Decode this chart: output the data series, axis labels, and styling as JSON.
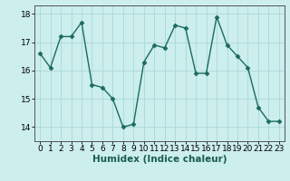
{
  "x": [
    0,
    1,
    2,
    3,
    4,
    5,
    6,
    7,
    8,
    9,
    10,
    11,
    12,
    13,
    14,
    15,
    16,
    17,
    18,
    19,
    20,
    21,
    22,
    23
  ],
  "y": [
    16.6,
    16.1,
    17.2,
    17.2,
    17.7,
    15.5,
    15.4,
    15.0,
    14.0,
    14.1,
    16.3,
    16.9,
    16.8,
    17.6,
    17.5,
    15.9,
    15.9,
    17.9,
    16.9,
    16.5,
    16.1,
    14.7,
    14.2,
    14.2
  ],
  "line_color": "#1a6b5e",
  "marker": "D",
  "marker_size": 2.5,
  "line_width": 1.0,
  "bg_color": "#cceeed",
  "grid_color": "#aad8d6",
  "xlabel": "Humidex (Indice chaleur)",
  "ylim": [
    13.5,
    18.3
  ],
  "xlim": [
    -0.5,
    23.5
  ],
  "yticks": [
    14,
    15,
    16,
    17,
    18
  ],
  "xticks": [
    0,
    1,
    2,
    3,
    4,
    5,
    6,
    7,
    8,
    9,
    10,
    11,
    12,
    13,
    14,
    15,
    16,
    17,
    18,
    19,
    20,
    21,
    22,
    23
  ],
  "xlabel_fontsize": 7.5,
  "tick_fontsize": 6.5
}
